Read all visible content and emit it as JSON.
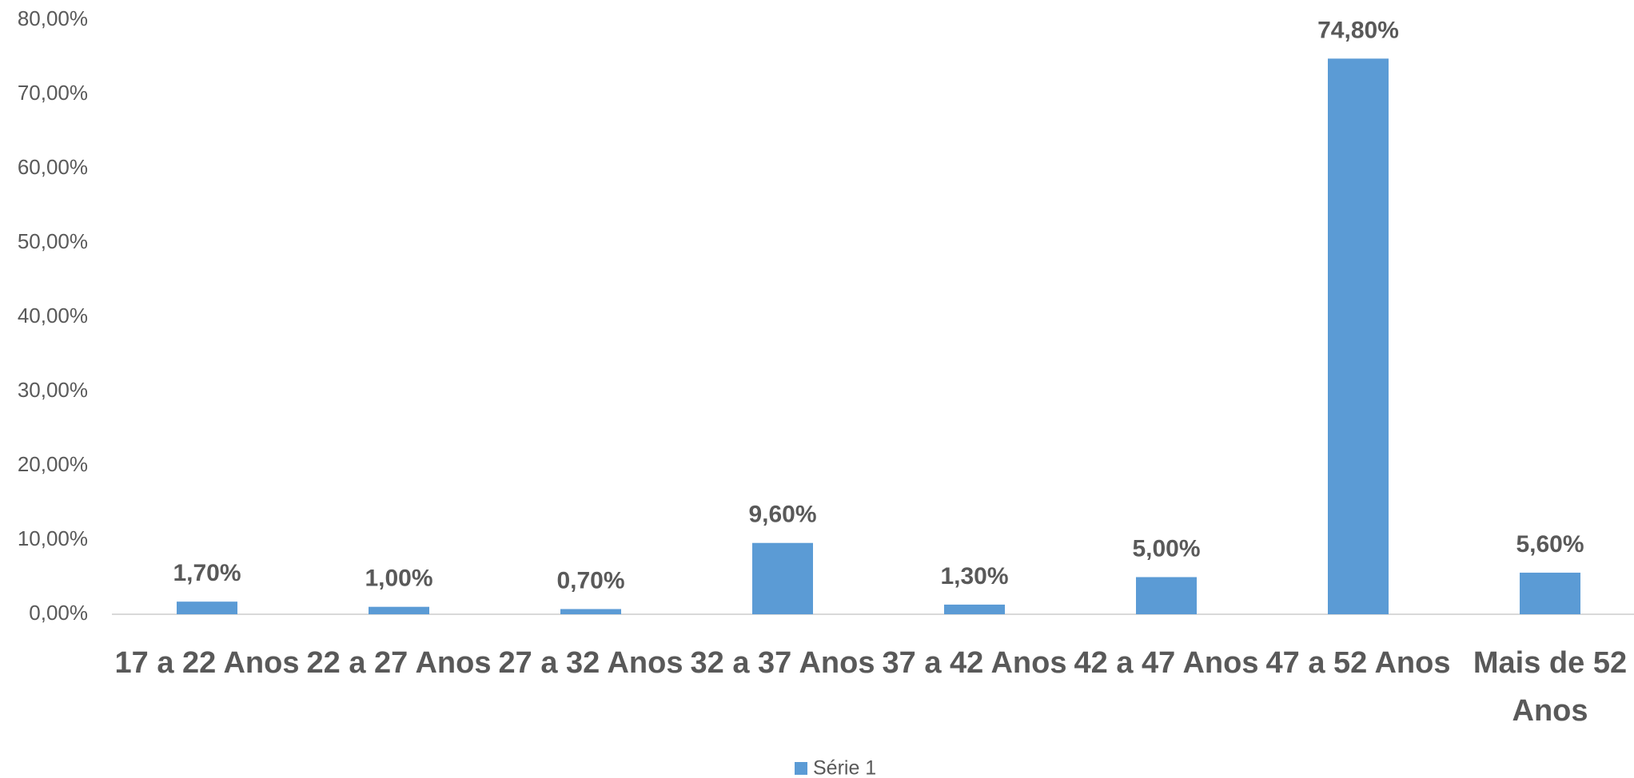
{
  "chart_data": {
    "type": "bar",
    "categories": [
      "17 a 22 Anos",
      "22 a 27 Anos",
      "27 a 32 Anos",
      "32 a 37 Anos",
      "37 a 42 Anos",
      "42 a 47 Anos",
      "47 a 52 Anos",
      "Mais de 52 Anos"
    ],
    "series": [
      {
        "name": "Série 1",
        "color": "#5b9bd5",
        "values": [
          1.7,
          1.0,
          0.7,
          9.6,
          1.3,
          5.0,
          74.8,
          5.6
        ],
        "value_labels": [
          "1,70%",
          "1,00%",
          "0,70%",
          "9,60%",
          "1,30%",
          "5,00%",
          "74,80%",
          "5,60%"
        ]
      }
    ],
    "ylim": [
      0,
      80
    ],
    "yticks": [
      {
        "value": 0,
        "label": "0,00%"
      },
      {
        "value": 10,
        "label": "10,00%"
      },
      {
        "value": 20,
        "label": "20,00%"
      },
      {
        "value": 30,
        "label": "30,00%"
      },
      {
        "value": 40,
        "label": "40,00%"
      },
      {
        "value": 50,
        "label": "50,00%"
      },
      {
        "value": 60,
        "label": "60,00%"
      },
      {
        "value": 70,
        "label": "70,00%"
      },
      {
        "value": 80,
        "label": "80,00%"
      }
    ],
    "legend": "bottom"
  }
}
